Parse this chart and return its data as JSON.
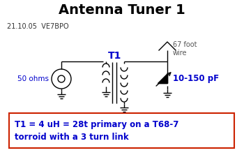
{
  "title": "Antenna Tuner 1",
  "title_fontsize": 14,
  "title_fontweight": "bold",
  "title_color": "#000000",
  "date_author": "21.10.05  VE7BPO",
  "label_50ohms": "50 ohms",
  "label_T1": "T1",
  "label_67foot": "67 foot\nwire",
  "label_cap": "10-150 pF",
  "label_bottom": "T1 = 4 uH = 28t primary on a T68-7\ntorroid with a 3 turn link",
  "bg_color": "#ffffff",
  "blue_color": "#0000cc",
  "line_color": "#000000",
  "red_box_border": "#cc2200"
}
